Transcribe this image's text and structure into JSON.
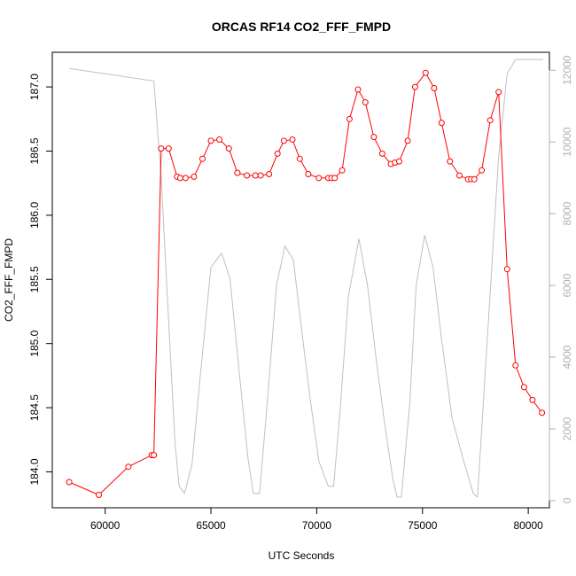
{
  "chart_data": {
    "type": "line",
    "title": "ORCAS RF14 CO2_FFF_FMPD",
    "xlabel": "UTC Seconds",
    "ylabel": "CO2_FFF_FMPD",
    "xlim": [
      57500,
      81000
    ],
    "ylim": [
      183.72,
      187.27
    ],
    "y2lim": [
      -200,
      12500
    ],
    "x_ticks": [
      60000,
      65000,
      70000,
      75000,
      80000
    ],
    "y_ticks": [
      184.0,
      184.5,
      185.0,
      185.5,
      186.0,
      186.5,
      187.0
    ],
    "y2_ticks": [
      0,
      2000,
      4000,
      6000,
      8000,
      10000,
      12000
    ],
    "grid": false,
    "series": [
      {
        "color": "#ff0000",
        "style": "line+open-circles",
        "axis": "left",
        "x": [
          58300,
          59700,
          61100,
          62200,
          62300,
          62650,
          63000,
          63400,
          63550,
          63800,
          64200,
          64600,
          65000,
          65400,
          65850,
          66250,
          66700,
          67100,
          67350,
          67750,
          68150,
          68450,
          68850,
          69200,
          69600,
          70100,
          70550,
          70700,
          70850,
          71200,
          71550,
          71950,
          72300,
          72700,
          73100,
          73500,
          73700,
          73900,
          74300,
          74650,
          75150,
          75550,
          75900,
          76300,
          76750,
          77150,
          77300,
          77450,
          77800,
          78200,
          78600,
          79000,
          79400,
          79800,
          80200,
          80650
        ],
        "y": [
          183.92,
          183.82,
          184.04,
          184.13,
          184.13,
          186.52,
          186.52,
          186.3,
          186.29,
          186.29,
          186.3,
          186.44,
          186.58,
          186.59,
          186.52,
          186.33,
          186.31,
          186.31,
          186.31,
          186.32,
          186.48,
          186.58,
          186.59,
          186.44,
          186.32,
          186.29,
          186.29,
          186.29,
          186.29,
          186.35,
          186.75,
          186.98,
          186.88,
          186.61,
          186.48,
          186.4,
          186.41,
          186.42,
          186.58,
          187.0,
          187.11,
          186.99,
          186.72,
          186.42,
          186.31,
          186.28,
          186.28,
          186.28,
          186.35,
          186.74,
          186.96,
          185.58,
          184.83,
          184.66,
          184.56,
          184.46
        ]
      },
      {
        "color": "#c0c0c0",
        "style": "line",
        "axis": "right",
        "x": [
          58300,
          60000,
          62300,
          62650,
          63000,
          63300,
          63500,
          63750,
          64100,
          64500,
          65000,
          65500,
          65900,
          66400,
          66750,
          67000,
          67300,
          67700,
          68100,
          68500,
          68900,
          69300,
          69700,
          70100,
          70550,
          70800,
          71100,
          71500,
          72000,
          72400,
          72800,
          73200,
          73600,
          73800,
          74000,
          74400,
          74700,
          75100,
          75500,
          75900,
          76400,
          76900,
          77400,
          77600,
          77800,
          78200,
          78600,
          79000,
          79400,
          80700
        ],
        "y": [
          12050,
          11900,
          11700,
          9000,
          5000,
          1600,
          400,
          200,
          1000,
          3500,
          6500,
          6900,
          6200,
          3200,
          1200,
          200,
          200,
          3000,
          6000,
          7100,
          6700,
          4700,
          2800,
          1100,
          400,
          400,
          2500,
          5700,
          7300,
          6000,
          4000,
          2200,
          600,
          100,
          100,
          2700,
          6000,
          7400,
          6500,
          4500,
          2300,
          1200,
          200,
          100,
          2000,
          5800,
          9600,
          11900,
          12300,
          12300
        ]
      }
    ]
  }
}
